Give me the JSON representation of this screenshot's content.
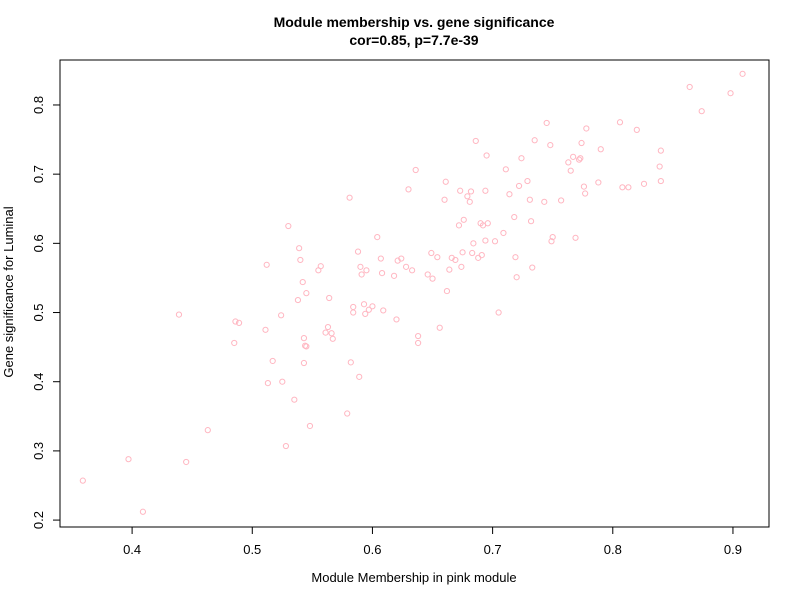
{
  "chart_data": {
    "type": "scatter",
    "title": "Module membership vs. gene significance",
    "subtitle": "cor=0.85, p=7.7e-39",
    "xlabel": "Module Membership in pink module",
    "ylabel": "Gene significance for Luminal",
    "xlim": [
      0.34,
      0.93
    ],
    "ylim": [
      0.19,
      0.865
    ],
    "xticks": [
      0.4,
      0.5,
      0.6,
      0.7,
      0.8,
      0.9
    ],
    "xtick_labels": [
      "0.4",
      "0.5",
      "0.6",
      "0.7",
      "0.8",
      "0.9"
    ],
    "yticks": [
      0.2,
      0.3,
      0.4,
      0.5,
      0.6,
      0.7,
      0.8
    ],
    "ytick_labels": [
      "0.2",
      "0.3",
      "0.4",
      "0.5",
      "0.6",
      "0.7",
      "0.8"
    ],
    "grid": false,
    "marker": "open-circle",
    "point_color": "#ffb6c1",
    "points": [
      [
        0.359,
        0.257
      ],
      [
        0.397,
        0.288
      ],
      [
        0.409,
        0.212
      ],
      [
        0.439,
        0.497
      ],
      [
        0.445,
        0.284
      ],
      [
        0.463,
        0.33
      ],
      [
        0.485,
        0.456
      ],
      [
        0.486,
        0.487
      ],
      [
        0.489,
        0.485
      ],
      [
        0.511,
        0.475
      ],
      [
        0.512,
        0.569
      ],
      [
        0.513,
        0.398
      ],
      [
        0.517,
        0.43
      ],
      [
        0.524,
        0.496
      ],
      [
        0.525,
        0.4
      ],
      [
        0.528,
        0.307
      ],
      [
        0.53,
        0.625
      ],
      [
        0.535,
        0.374
      ],
      [
        0.538,
        0.518
      ],
      [
        0.539,
        0.593
      ],
      [
        0.54,
        0.576
      ],
      [
        0.542,
        0.544
      ],
      [
        0.543,
        0.463
      ],
      [
        0.543,
        0.427
      ],
      [
        0.544,
        0.452
      ],
      [
        0.545,
        0.451
      ],
      [
        0.545,
        0.528
      ],
      [
        0.548,
        0.336
      ],
      [
        0.555,
        0.561
      ],
      [
        0.557,
        0.567
      ],
      [
        0.561,
        0.471
      ],
      [
        0.563,
        0.479
      ],
      [
        0.564,
        0.521
      ],
      [
        0.566,
        0.47
      ],
      [
        0.567,
        0.462
      ],
      [
        0.579,
        0.354
      ],
      [
        0.581,
        0.666
      ],
      [
        0.582,
        0.428
      ],
      [
        0.584,
        0.508
      ],
      [
        0.584,
        0.5
      ],
      [
        0.588,
        0.588
      ],
      [
        0.589,
        0.407
      ],
      [
        0.59,
        0.566
      ],
      [
        0.591,
        0.555
      ],
      [
        0.593,
        0.512
      ],
      [
        0.594,
        0.498
      ],
      [
        0.595,
        0.561
      ],
      [
        0.597,
        0.504
      ],
      [
        0.6,
        0.509
      ],
      [
        0.604,
        0.609
      ],
      [
        0.607,
        0.578
      ],
      [
        0.608,
        0.557
      ],
      [
        0.609,
        0.503
      ],
      [
        0.618,
        0.553
      ],
      [
        0.62,
        0.49
      ],
      [
        0.621,
        0.575
      ],
      [
        0.624,
        0.578
      ],
      [
        0.628,
        0.566
      ],
      [
        0.63,
        0.678
      ],
      [
        0.633,
        0.561
      ],
      [
        0.636,
        0.706
      ],
      [
        0.638,
        0.456
      ],
      [
        0.638,
        0.466
      ],
      [
        0.646,
        0.555
      ],
      [
        0.649,
        0.586
      ],
      [
        0.65,
        0.549
      ],
      [
        0.654,
        0.58
      ],
      [
        0.656,
        0.478
      ],
      [
        0.66,
        0.663
      ],
      [
        0.661,
        0.689
      ],
      [
        0.662,
        0.531
      ],
      [
        0.664,
        0.562
      ],
      [
        0.666,
        0.579
      ],
      [
        0.669,
        0.576
      ],
      [
        0.672,
        0.626
      ],
      [
        0.673,
        0.676
      ],
      [
        0.674,
        0.566
      ],
      [
        0.675,
        0.587
      ],
      [
        0.676,
        0.634
      ],
      [
        0.679,
        0.668
      ],
      [
        0.681,
        0.66
      ],
      [
        0.682,
        0.675
      ],
      [
        0.683,
        0.586
      ],
      [
        0.684,
        0.6
      ],
      [
        0.686,
        0.748
      ],
      [
        0.688,
        0.579
      ],
      [
        0.69,
        0.629
      ],
      [
        0.691,
        0.583
      ],
      [
        0.692,
        0.626
      ],
      [
        0.694,
        0.604
      ],
      [
        0.694,
        0.676
      ],
      [
        0.695,
        0.727
      ],
      [
        0.696,
        0.629
      ],
      [
        0.702,
        0.603
      ],
      [
        0.705,
        0.5
      ],
      [
        0.709,
        0.615
      ],
      [
        0.711,
        0.707
      ],
      [
        0.714,
        0.671
      ],
      [
        0.718,
        0.638
      ],
      [
        0.719,
        0.58
      ],
      [
        0.72,
        0.551
      ],
      [
        0.722,
        0.683
      ],
      [
        0.724,
        0.723
      ],
      [
        0.729,
        0.69
      ],
      [
        0.731,
        0.663
      ],
      [
        0.732,
        0.632
      ],
      [
        0.733,
        0.565
      ],
      [
        0.735,
        0.749
      ],
      [
        0.743,
        0.66
      ],
      [
        0.745,
        0.774
      ],
      [
        0.748,
        0.742
      ],
      [
        0.749,
        0.603
      ],
      [
        0.75,
        0.609
      ],
      [
        0.757,
        0.662
      ],
      [
        0.763,
        0.717
      ],
      [
        0.765,
        0.705
      ],
      [
        0.767,
        0.725
      ],
      [
        0.769,
        0.608
      ],
      [
        0.772,
        0.721
      ],
      [
        0.773,
        0.723
      ],
      [
        0.774,
        0.745
      ],
      [
        0.776,
        0.682
      ],
      [
        0.777,
        0.672
      ],
      [
        0.778,
        0.766
      ],
      [
        0.788,
        0.688
      ],
      [
        0.79,
        0.736
      ],
      [
        0.806,
        0.775
      ],
      [
        0.808,
        0.681
      ],
      [
        0.813,
        0.681
      ],
      [
        0.82,
        0.764
      ],
      [
        0.826,
        0.686
      ],
      [
        0.839,
        0.711
      ],
      [
        0.84,
        0.734
      ],
      [
        0.84,
        0.69
      ],
      [
        0.864,
        0.826
      ],
      [
        0.874,
        0.791
      ],
      [
        0.898,
        0.817
      ],
      [
        0.908,
        0.845
      ]
    ]
  }
}
